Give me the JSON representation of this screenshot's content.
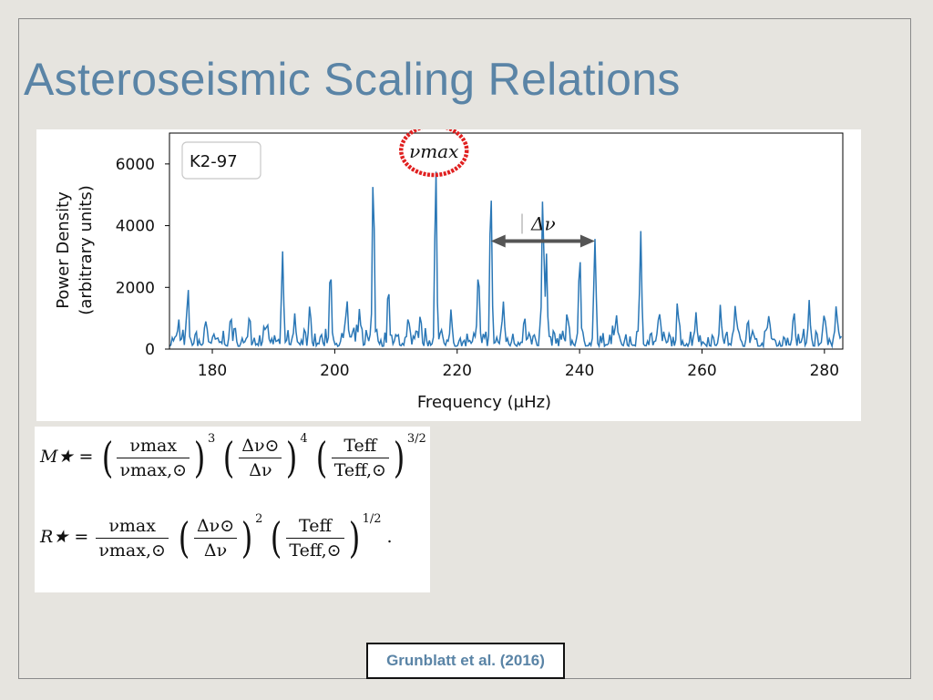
{
  "slide": {
    "title": "Asteroseismic Scaling Relations",
    "citation": "Grunblatt et al. (2016)"
  },
  "colors": {
    "title": "#5a84a6",
    "series": "#2a77b6",
    "marker_ring": "#e02020",
    "arrow": "#555555"
  },
  "equations": {
    "mass_lhs": "M★ =",
    "radius_lhs": "R★ =",
    "nu_max": "νmax",
    "nu_max_sun": "νmax,⊙",
    "delta_nu_sun": "Δν⊙",
    "delta_nu": "Δν",
    "t_eff": "Teff",
    "t_eff_sun": "Teff,⊙",
    "mass_exp1": "3",
    "mass_exp2": "4",
    "mass_exp3": "3/2",
    "radius_exp2": "2",
    "radius_exp3": "1/2",
    "period": "."
  },
  "chart_data": {
    "type": "line",
    "title": "",
    "legend_label": "K2-97",
    "xlabel": "Frequency (μHz)",
    "ylabel_line1": "Power Density",
    "ylabel_line2": "(arbitrary units)",
    "xlim": [
      173,
      283
    ],
    "ylim": [
      0,
      7000
    ],
    "xticks": [
      180,
      200,
      220,
      240,
      260,
      280
    ],
    "yticks": [
      0,
      2000,
      4000,
      6000
    ],
    "annotations": {
      "numax_label": "νmax",
      "numax_at": 216.5,
      "delta_nu_label": "Δν",
      "delta_nu_from": 225.5,
      "delta_nu_to": 242.5,
      "delta_nu_y": 3500
    },
    "peaks": [
      {
        "x": 174.5,
        "y": 700
      },
      {
        "x": 176.0,
        "y": 1400
      },
      {
        "x": 179.0,
        "y": 800
      },
      {
        "x": 183.0,
        "y": 900
      },
      {
        "x": 186.0,
        "y": 900
      },
      {
        "x": 188.5,
        "y": 700
      },
      {
        "x": 191.5,
        "y": 2700
      },
      {
        "x": 193.5,
        "y": 900
      },
      {
        "x": 196.0,
        "y": 1100
      },
      {
        "x": 199.3,
        "y": 2650
      },
      {
        "x": 202.0,
        "y": 1400
      },
      {
        "x": 204.0,
        "y": 1000
      },
      {
        "x": 206.3,
        "y": 5650
      },
      {
        "x": 208.8,
        "y": 1800
      },
      {
        "x": 212.0,
        "y": 900
      },
      {
        "x": 214.0,
        "y": 1000
      },
      {
        "x": 216.5,
        "y": 5800
      },
      {
        "x": 219.0,
        "y": 1200
      },
      {
        "x": 223.5,
        "y": 2200
      },
      {
        "x": 225.5,
        "y": 4950
      },
      {
        "x": 227.5,
        "y": 1300
      },
      {
        "x": 231.0,
        "y": 1000
      },
      {
        "x": 234.0,
        "y": 4950
      },
      {
        "x": 234.6,
        "y": 2600
      },
      {
        "x": 238.0,
        "y": 1100
      },
      {
        "x": 240.0,
        "y": 2600
      },
      {
        "x": 242.5,
        "y": 3500
      },
      {
        "x": 246.0,
        "y": 1000
      },
      {
        "x": 250.0,
        "y": 3600
      },
      {
        "x": 253.0,
        "y": 900
      },
      {
        "x": 256.0,
        "y": 1000
      },
      {
        "x": 259.0,
        "y": 1100
      },
      {
        "x": 263.0,
        "y": 1300
      },
      {
        "x": 265.5,
        "y": 1200
      },
      {
        "x": 267.5,
        "y": 900
      },
      {
        "x": 271.0,
        "y": 900
      },
      {
        "x": 275.0,
        "y": 1200
      },
      {
        "x": 277.5,
        "y": 1400
      },
      {
        "x": 280.0,
        "y": 1100
      },
      {
        "x": 282.0,
        "y": 900
      }
    ],
    "background_level": 300
  }
}
